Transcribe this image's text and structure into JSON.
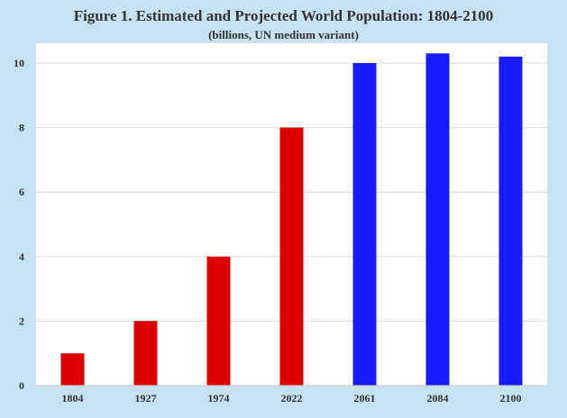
{
  "chart_data": {
    "type": "bar",
    "title": "Figure 1. Estimated and Projected World Population: 1804-2100",
    "subtitle": "(billions, UN medium variant)",
    "xlabel": "",
    "ylabel": "",
    "categories": [
      "1804",
      "1927",
      "1974",
      "2022",
      "2061",
      "2084",
      "2100"
    ],
    "values": [
      1,
      2,
      4,
      8,
      10,
      10.3,
      10.2
    ],
    "bar_types": [
      "estimated",
      "estimated",
      "estimated",
      "estimated",
      "projected",
      "projected",
      "projected"
    ],
    "colors": {
      "estimated": "#dd0000",
      "projected": "#1a1aff"
    },
    "ylim": [
      0,
      10
    ],
    "yticks": [
      0,
      2,
      4,
      6,
      8,
      10
    ],
    "grid": true
  }
}
